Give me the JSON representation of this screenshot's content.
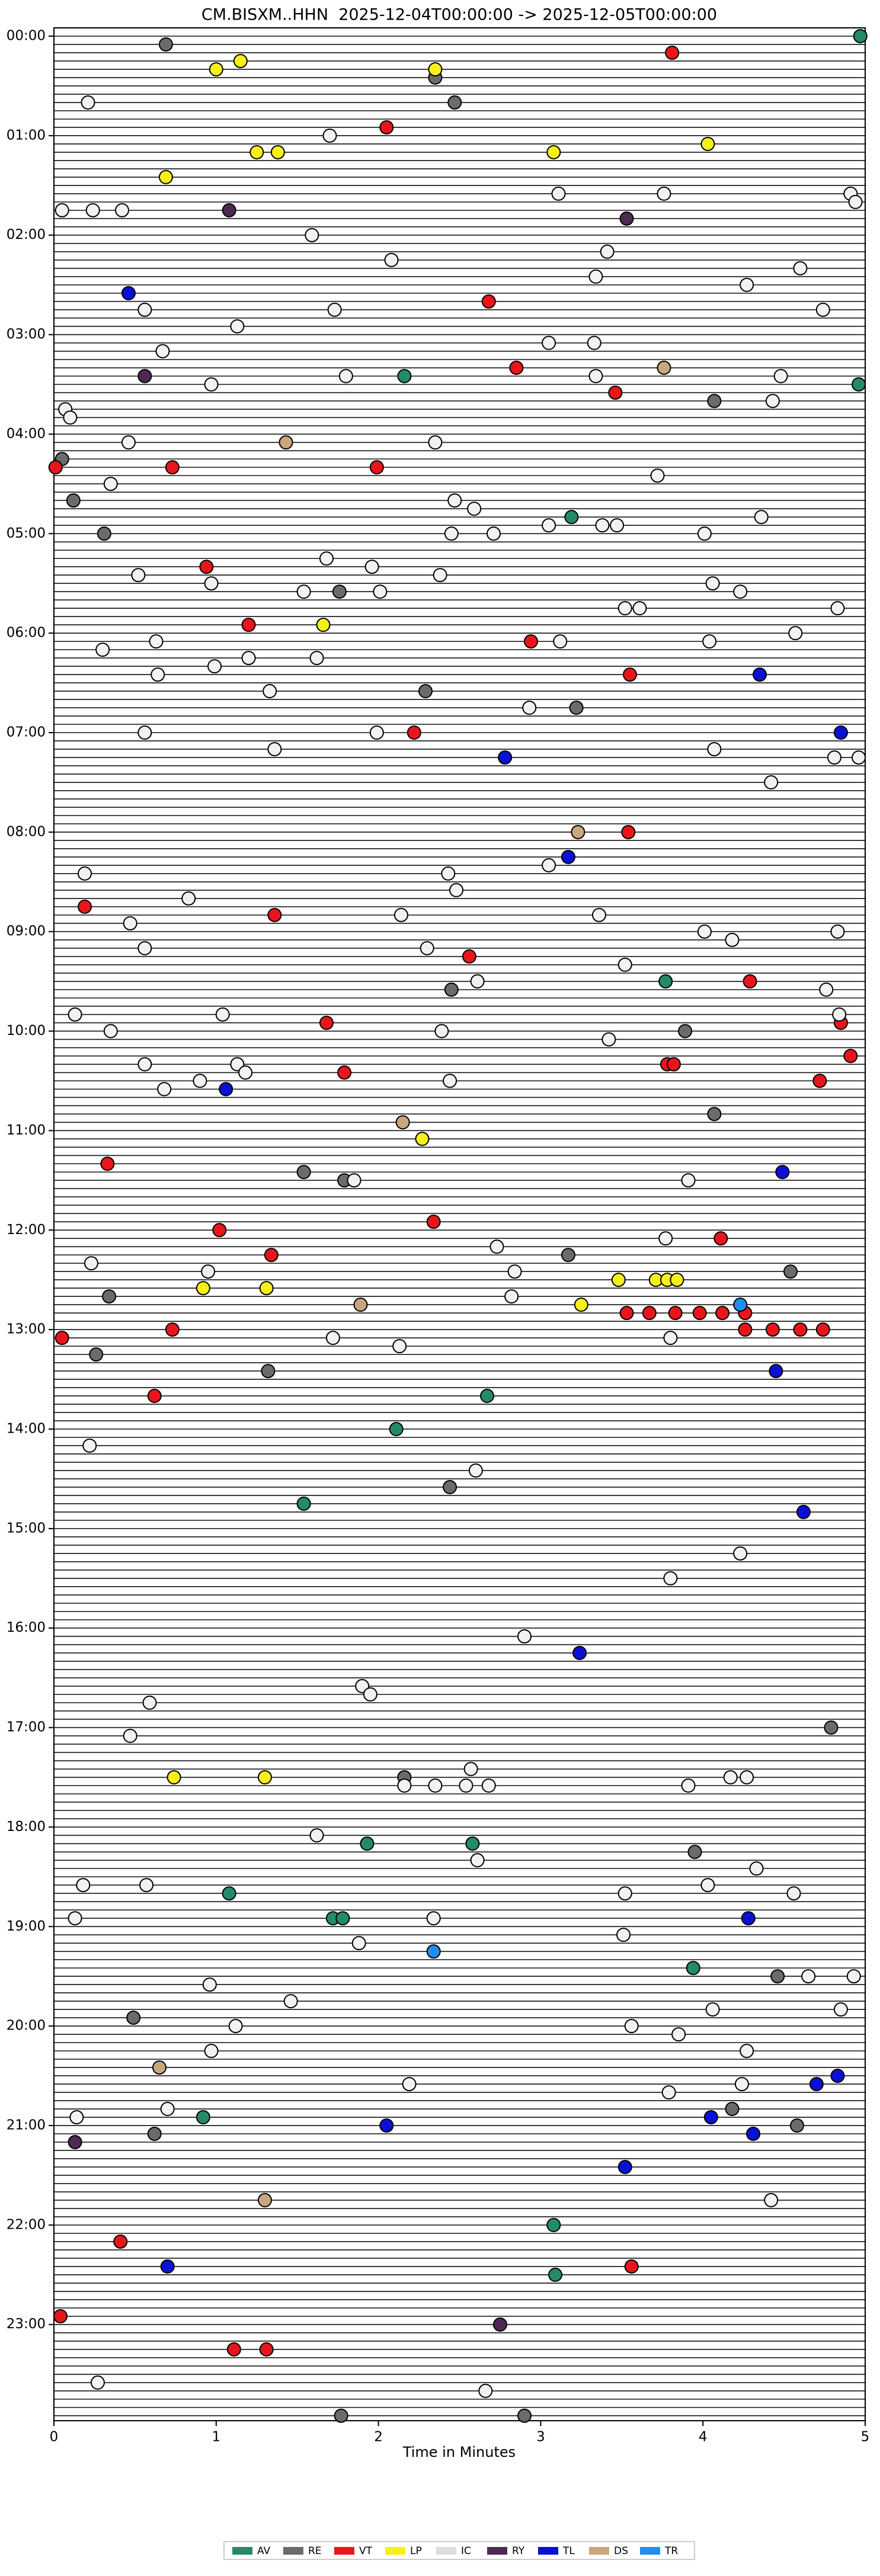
{
  "chart_data": {
    "type": "scatter",
    "title": "CM.BISXM..HHN  2025-12-04T00:00:00 -> 2025-12-05T00:00:00",
    "x_label": "Time in Minutes",
    "xlim": [
      0,
      5
    ],
    "xticks": [
      0,
      1,
      2,
      3,
      4,
      5
    ],
    "ylim": [
      287.6,
      -1
    ],
    "yticks": [
      {
        "value": 0,
        "label": "00:00"
      },
      {
        "value": 12,
        "label": "01:00"
      },
      {
        "value": 24,
        "label": "02:00"
      },
      {
        "value": 36,
        "label": "03:00"
      },
      {
        "value": 48,
        "label": "04:00"
      },
      {
        "value": 60,
        "label": "05:00"
      },
      {
        "value": 72,
        "label": "06:00"
      },
      {
        "value": 84,
        "label": "07:00"
      },
      {
        "value": 96,
        "label": "08:00"
      },
      {
        "value": 108,
        "label": "09:00"
      },
      {
        "value": 120,
        "label": "10:00"
      },
      {
        "value": 132,
        "label": "11:00"
      },
      {
        "value": 144,
        "label": "12:00"
      },
      {
        "value": 156,
        "label": "13:00"
      },
      {
        "value": 168,
        "label": "14:00"
      },
      {
        "value": 180,
        "label": "15:00"
      },
      {
        "value": 192,
        "label": "16:00"
      },
      {
        "value": 204,
        "label": "17:00"
      },
      {
        "value": 216,
        "label": "18:00"
      },
      {
        "value": 228,
        "label": "19:00"
      },
      {
        "value": 240,
        "label": "20:00"
      },
      {
        "value": 252,
        "label": "21:00"
      },
      {
        "value": 264,
        "label": "22:00"
      },
      {
        "value": 276,
        "label": "23:00"
      }
    ],
    "legend": "bottom",
    "series": [
      {
        "name": "AV",
        "color": "#238a6b",
        "x": [
          4.97,
          2.16,
          4.96,
          3.19,
          3.77,
          2.67,
          2.11,
          1.54,
          1.93,
          2.58,
          1.08,
          1.72,
          1.78,
          0.92,
          3.94,
          3.08,
          3.09
        ],
        "values": [
          0,
          41,
          42,
          58,
          114,
          164,
          168,
          177,
          218,
          218,
          224,
          227,
          227,
          251,
          233,
          264,
          270
        ]
      },
      {
        "name": "RE",
        "color": "#6b6b6b",
        "x": [
          0.69,
          2.35,
          2.47,
          4.07,
          0.05,
          0.12,
          0.31,
          1.76,
          2.29,
          3.22,
          2.45,
          3.89,
          4.07,
          1.54,
          1.79,
          3.17,
          4.54,
          0.34,
          0.26,
          1.32,
          2.44,
          4.79,
          2.16,
          3.95,
          4.46,
          0.49,
          4.18,
          0.62,
          4.58,
          1.77,
          2.9
        ],
        "values": [
          1,
          5,
          8,
          44,
          51,
          56,
          60,
          67,
          79,
          81,
          115,
          120,
          130,
          137,
          138,
          147,
          149,
          152,
          159,
          161,
          175,
          204,
          210,
          219,
          234,
          239,
          250,
          253,
          252,
          287,
          287
        ]
      },
      {
        "name": "VT",
        "color": "#e8161b",
        "x": [
          3.81,
          2.05,
          2.68,
          2.85,
          3.46,
          0.01,
          0.73,
          1.99,
          0.94,
          1.2,
          2.94,
          3.55,
          2.22,
          3.54,
          0.19,
          1.36,
          2.56,
          4.29,
          4.85,
          1.68,
          4.91,
          3.78,
          3.82,
          1.79,
          4.72,
          0.33,
          1.02,
          2.34,
          4.11,
          1.34,
          3.53,
          3.67,
          3.83,
          3.98,
          4.12,
          4.26,
          0.73,
          0.05,
          4.26,
          4.43,
          4.6,
          4.74,
          0.62,
          0.41,
          3.56,
          0.04,
          1.11,
          1.31
        ],
        "values": [
          2,
          11,
          32,
          40,
          43,
          52,
          52,
          52,
          64,
          71,
          73,
          77,
          84,
          96,
          105,
          106,
          111,
          114,
          119,
          119,
          123,
          124,
          124,
          125,
          126,
          136,
          144,
          143,
          145,
          147,
          154,
          154,
          154,
          154,
          154,
          154,
          156,
          157,
          156,
          156,
          156,
          156,
          164,
          266,
          269,
          275,
          279,
          279
        ]
      },
      {
        "name": "LP",
        "color": "#f5f01a",
        "x": [
          1.15,
          1.0,
          2.35,
          1.25,
          1.38,
          3.08,
          0.69,
          1.66,
          2.27,
          3.48,
          3.71,
          3.78,
          3.84,
          0.92,
          1.31,
          3.25,
          0.74,
          1.3,
          4.03
        ],
        "values": [
          3,
          4,
          4,
          14,
          14,
          14,
          17,
          71,
          133,
          150,
          150,
          150,
          150,
          151,
          151,
          153,
          210,
          210,
          13
        ]
      },
      {
        "name": "IC",
        "color": "#f2f2f2",
        "x": [
          0.21,
          1.7,
          3.11,
          3.76,
          4.91,
          4.94,
          0.05,
          0.24,
          0.42,
          1.59,
          3.41,
          2.08,
          4.6,
          3.34,
          4.27,
          0.56,
          1.73,
          4.74,
          1.13,
          3.05,
          3.33,
          0.67,
          1.8,
          3.34,
          4.48,
          0.97,
          4.43,
          0.07,
          0.1,
          0.46,
          2.35,
          3.72,
          0.35,
          2.47,
          2.59,
          4.36,
          2.45,
          2.71,
          3.05,
          3.38,
          3.47,
          4.01,
          1.68,
          1.96,
          0.52,
          0.97,
          2.38,
          1.54,
          2.01,
          4.06,
          4.23,
          3.52,
          3.61,
          4.83,
          0.63,
          3.12,
          4.04,
          4.57,
          0.3,
          1.2,
          1.62,
          0.99,
          0.64,
          1.33,
          2.93,
          0.56,
          1.99,
          4.07,
          1.36,
          4.81,
          4.96,
          4.42,
          3.05,
          2.43,
          0.19,
          2.48,
          0.83,
          2.14,
          3.36,
          0.47,
          4.01,
          4.18,
          4.83,
          0.56,
          2.3,
          3.52,
          2.61,
          4.76,
          4.84,
          0.13,
          1.04,
          0.35,
          2.39,
          3.42,
          0.56,
          1.13,
          0.9,
          2.44,
          0.68,
          1.18,
          1.85,
          3.91,
          3.77,
          2.73,
          0.23,
          0.95,
          2.84,
          2.82,
          1.72,
          3.8,
          2.13,
          0.22,
          2.6,
          4.23,
          3.8,
          2.9,
          1.9,
          1.95,
          0.59,
          0.47,
          2.57,
          2.16,
          2.35,
          2.54,
          2.68,
          3.91,
          4.17,
          4.27,
          1.62,
          2.61,
          4.33,
          0.18,
          0.57,
          3.52,
          4.03,
          4.56,
          0.13,
          2.34,
          1.88,
          3.51,
          4.65,
          4.93,
          0.96,
          1.46,
          4.06,
          4.85,
          1.12,
          3.56,
          3.85,
          0.97,
          4.27,
          2.19,
          3.79,
          4.24,
          0.7,
          0.14,
          4.42,
          0.27,
          2.66
        ],
        "values": [
          8,
          12,
          19,
          19,
          19,
          20,
          21,
          21,
          21,
          24,
          26,
          27,
          28,
          29,
          30,
          33,
          33,
          33,
          35,
          37,
          37,
          38,
          41,
          41,
          41,
          42,
          44,
          45,
          46,
          49,
          49,
          53,
          54,
          56,
          57,
          58,
          60,
          60,
          59,
          59,
          59,
          60,
          63,
          64,
          65,
          66,
          65,
          67,
          67,
          66,
          67,
          69,
          69,
          69,
          73,
          73,
          73,
          72,
          74,
          75,
          75,
          76,
          77,
          79,
          81,
          84,
          84,
          86,
          86,
          87,
          87,
          90,
          100,
          101,
          101,
          103,
          104,
          106,
          106,
          107,
          108,
          109,
          108,
          110,
          110,
          112,
          114,
          115,
          118,
          118,
          118,
          120,
          120,
          121,
          124,
          124,
          126,
          126,
          127,
          125,
          138,
          138,
          145,
          146,
          148,
          149,
          149,
          152,
          157,
          157,
          158,
          170,
          173,
          183,
          186,
          193,
          199,
          200,
          201,
          205,
          209,
          211,
          211,
          211,
          211,
          211,
          210,
          210,
          217,
          220,
          221,
          223,
          223,
          224,
          223,
          224,
          227,
          227,
          230,
          229,
          234,
          234,
          235,
          237,
          238,
          238,
          240,
          240,
          241,
          243,
          243,
          247,
          248,
          247,
          250,
          251,
          261,
          283,
          284
        ]
      },
      {
        "name": "RY",
        "color": "#4e2a52",
        "x": [
          1.08,
          3.53,
          0.56,
          0.13,
          2.75
        ],
        "values": [
          21,
          22,
          41,
          254,
          276
        ]
      },
      {
        "name": "TL",
        "color": "#0a10d6",
        "x": [
          0.46,
          4.35,
          4.85,
          2.78,
          3.17,
          3.24,
          1.06,
          4.49,
          4.45,
          4.62,
          4.28,
          4.7,
          4.83,
          4.05,
          2.05,
          4.31,
          3.52,
          0.7
        ],
        "values": [
          31,
          77,
          84,
          87,
          99,
          195,
          127,
          137,
          161,
          178,
          227,
          247,
          246,
          251,
          252,
          253,
          257,
          269
        ]
      },
      {
        "name": "DS",
        "color": "#c9a77c",
        "x": [
          3.76,
          1.43,
          3.23,
          2.15,
          1.89,
          0.65,
          1.3
        ],
        "values": [
          40,
          49,
          96,
          131,
          153,
          245,
          261
        ]
      },
      {
        "name": "TR",
        "color": "#1e8ff0",
        "x": [
          4.23,
          2.34
        ],
        "values": [
          153,
          231
        ]
      }
    ]
  }
}
